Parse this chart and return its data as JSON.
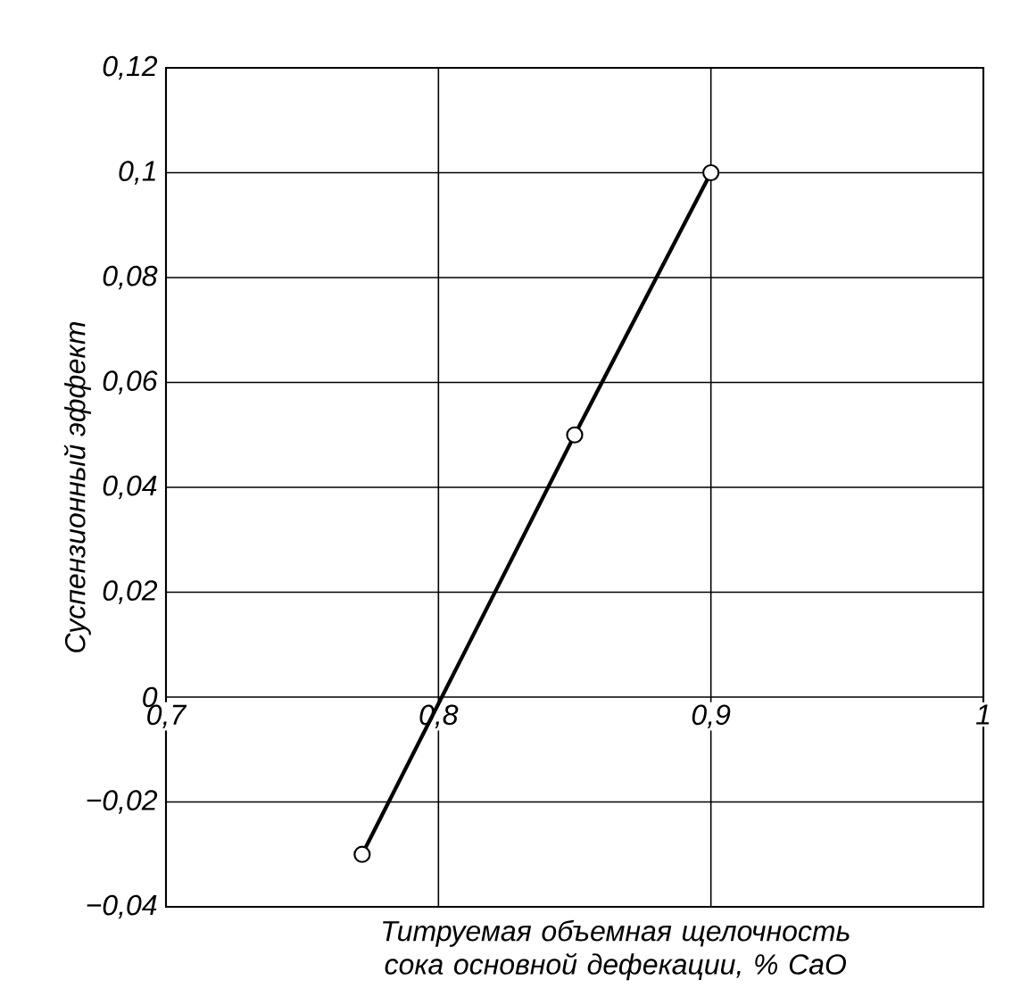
{
  "chart_data": {
    "type": "line",
    "xlabel": "*Титруемая объемная щелочность сока основной дефекации, %* CaO",
    "ylabel": "Суспензионный эффект",
    "x": [
      0.772,
      0.85,
      0.9
    ],
    "series": [
      {
        "color": "#000000",
        "values": [
          -0.03,
          0.05,
          0.1
        ]
      }
    ],
    "xlim": [
      0.7,
      1
    ],
    "ylim": [
      -0.04,
      0.12
    ],
    "xticks": [
      {
        "value": 0.7,
        "label": "0,7"
      },
      {
        "value": 0.8,
        "label": "0,8"
      },
      {
        "value": 0.9,
        "label": "0,9"
      },
      {
        "value": 1,
        "label": "1"
      }
    ],
    "yticks": [
      {
        "value": -0.04,
        "label": "−0,04"
      },
      {
        "value": -0.02,
        "label": "−0,02"
      },
      {
        "value": 0,
        "label": "0"
      },
      {
        "value": 0.02,
        "label": "0,02"
      },
      {
        "value": 0.04,
        "label": "0,04"
      },
      {
        "value": 0.06,
        "label": "0,06"
      },
      {
        "value": 0.08,
        "label": "0,08"
      },
      {
        "value": 0.1,
        "label": "0,1"
      },
      {
        "value": 0.12,
        "label": "0,12"
      }
    ],
    "grid": true,
    "marker": "circle",
    "line_style": "solid"
  }
}
